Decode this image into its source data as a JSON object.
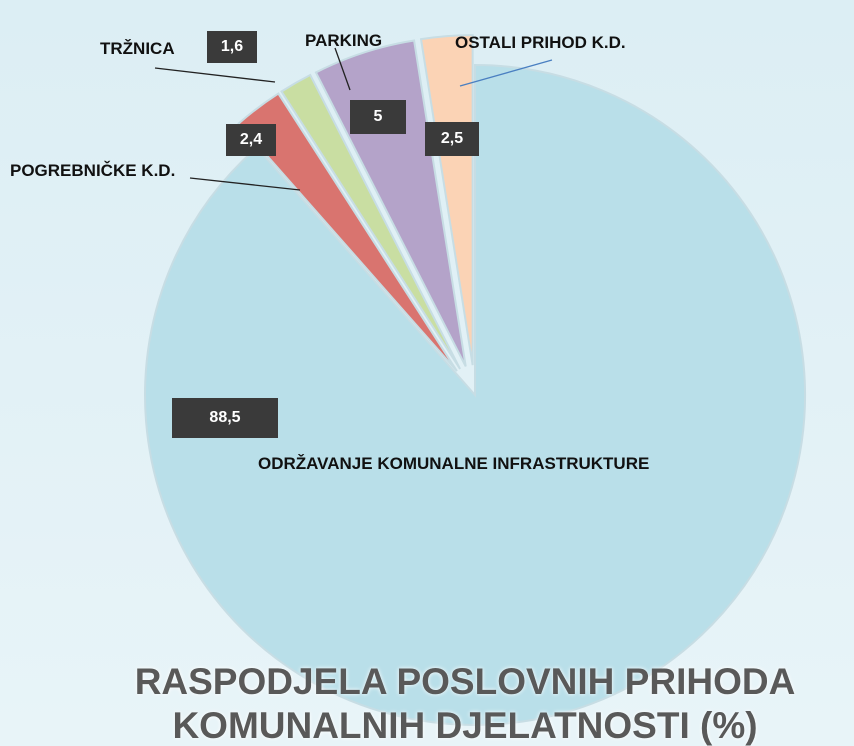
{
  "chart_data": {
    "type": "pie",
    "title": "RASPODJELA POSLOVNIH PRIHODA KOMUNALNIH DJELATNOSTI (%)",
    "categories": [
      "ODRŽAVANJE KOMUNALNE INFRASTRUKTURE",
      "POGREBNIČKE K.D.",
      "TRŽNICA",
      "PARKING",
      "OSTALI PRIHOD K.D."
    ],
    "values": [
      88.5,
      2.4,
      1.6,
      5,
      2.5
    ],
    "value_labels": [
      "88,5",
      "2,4",
      "1,6",
      "5",
      "2,5"
    ],
    "colors": [
      "#b9dfe9",
      "#d9746f",
      "#c9dea2",
      "#b4a3c9",
      "#fbd3b5"
    ]
  }
}
